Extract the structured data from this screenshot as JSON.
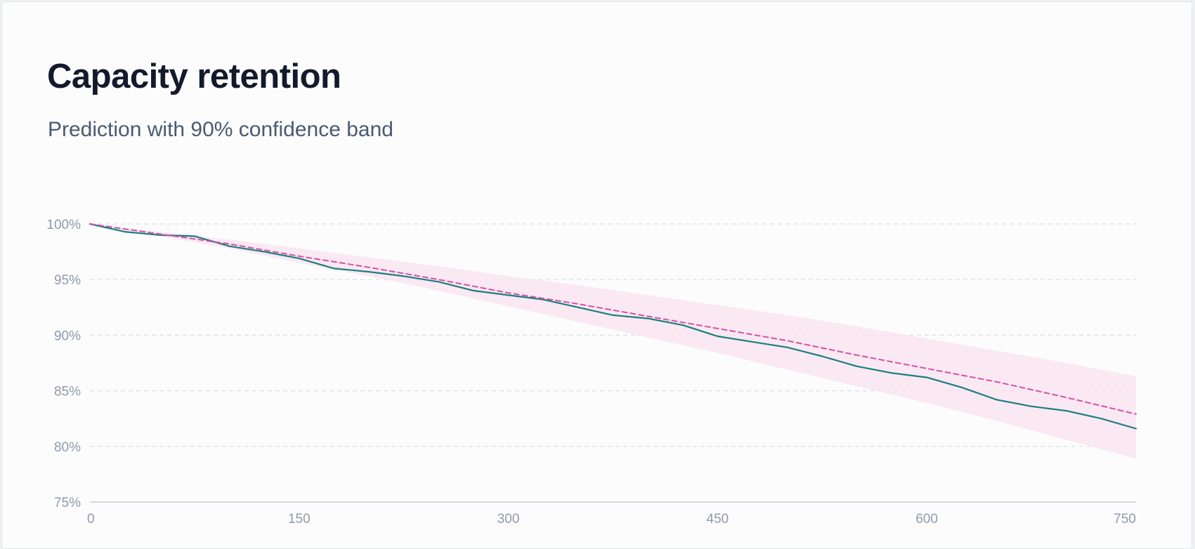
{
  "chart_data": {
    "type": "line",
    "title": "Capacity retention",
    "subtitle": "Prediction with 90% confidence band",
    "xlabel": "",
    "ylabel": "",
    "xlim": [
      0,
      750
    ],
    "ylim": [
      75,
      100
    ],
    "x_ticks": [
      0,
      150,
      300,
      450,
      600,
      750
    ],
    "y_ticks": [
      100,
      95,
      90,
      85,
      80,
      75
    ],
    "x_tick_labels": [
      "0",
      "150",
      "300",
      "450",
      "600",
      "750"
    ],
    "y_tick_labels": [
      "100%",
      "95%",
      "90%",
      "85%",
      "80%",
      "75%"
    ],
    "grid": "horizontal dashed",
    "legend": "none",
    "colors": {
      "measured": "#1a7f7f",
      "prediction": "#d452a4",
      "band": "#f9e4f1",
      "grid": "#d8dde3",
      "axis": "#c9d0d8"
    },
    "series": [
      {
        "style": "solid",
        "x": [
          0,
          25,
          50,
          75,
          100,
          125,
          150,
          175,
          200,
          225,
          250,
          275,
          300,
          325,
          350,
          375,
          400,
          425,
          450,
          475,
          500,
          525,
          550,
          575,
          600,
          625,
          650,
          675,
          700,
          725,
          750
        ],
        "y": [
          100.0,
          99.3,
          99.0,
          98.9,
          98.0,
          97.5,
          96.9,
          96.0,
          95.7,
          95.3,
          94.8,
          94.0,
          93.6,
          93.2,
          92.5,
          91.8,
          91.5,
          90.9,
          89.9,
          89.4,
          88.9,
          88.1,
          87.2,
          86.6,
          86.2,
          85.3,
          84.2,
          83.6,
          83.2,
          82.5,
          81.6
        ]
      },
      {
        "style": "dashed",
        "x": [
          0,
          50,
          100,
          150,
          200,
          250,
          300,
          350,
          400,
          450,
          500,
          550,
          600,
          650,
          700,
          750
        ],
        "y": [
          100.0,
          99.1,
          98.2,
          97.1,
          96.1,
          95.0,
          93.8,
          92.8,
          91.7,
          90.6,
          89.5,
          88.2,
          87.0,
          85.8,
          84.4,
          82.9
        ]
      }
    ],
    "confidence_band": {
      "x": [
        0,
        50,
        100,
        150,
        200,
        250,
        300,
        350,
        400,
        450,
        500,
        550,
        600,
        650,
        700,
        750
      ],
      "upper": [
        100.0,
        99.3,
        98.6,
        97.8,
        97.0,
        96.2,
        95.3,
        94.5,
        93.6,
        92.7,
        91.8,
        90.8,
        89.7,
        88.6,
        87.5,
        86.3
      ],
      "lower": [
        100.0,
        98.9,
        97.8,
        96.5,
        95.3,
        94.0,
        92.6,
        91.2,
        89.8,
        88.4,
        86.9,
        85.4,
        83.9,
        82.3,
        80.6,
        78.9
      ]
    }
  }
}
